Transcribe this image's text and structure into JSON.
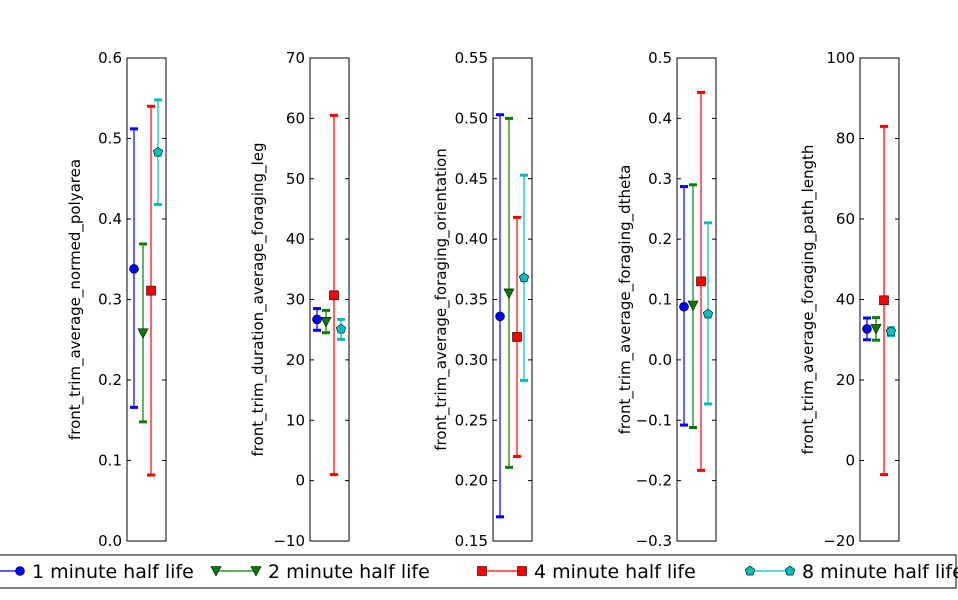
{
  "chart_data": [
    {
      "type": "errorbar",
      "ylabel": "front_trim_average_normed_polyarea",
      "ylim": [
        0.0,
        0.6
      ],
      "yticks": [
        0.0,
        0.1,
        0.2,
        0.3,
        0.4,
        0.5,
        0.6
      ],
      "ytick_labels": [
        "0.0",
        "0.1",
        "0.2",
        "0.3",
        "0.4",
        "0.5",
        "0.6"
      ],
      "series": [
        {
          "name": "1 minute half life",
          "mean": 0.338,
          "low": 0.166,
          "high": 0.512
        },
        {
          "name": "2 minute half life",
          "mean": 0.258,
          "low": 0.148,
          "high": 0.369
        },
        {
          "name": "4 minute half life",
          "mean": 0.311,
          "low": 0.082,
          "high": 0.54
        },
        {
          "name": "8 minute half life",
          "mean": 0.483,
          "low": 0.418,
          "high": 0.548
        }
      ]
    },
    {
      "type": "errorbar",
      "ylabel": "front_trim_duration_average_foraging_leg",
      "ylim": [
        -10,
        70
      ],
      "yticks": [
        -10,
        0,
        10,
        20,
        30,
        40,
        50,
        60,
        70
      ],
      "ytick_labels": [
        "−10",
        "0",
        "10",
        "20",
        "30",
        "40",
        "50",
        "60",
        "70"
      ],
      "series": [
        {
          "name": "1 minute half life",
          "mean": 26.7,
          "low": 24.9,
          "high": 28.5
        },
        {
          "name": "2 minute half life",
          "mean": 26.3,
          "low": 24.5,
          "high": 28.2
        },
        {
          "name": "4 minute half life",
          "mean": 30.7,
          "low": 1.0,
          "high": 60.5
        },
        {
          "name": "8 minute half life",
          "mean": 25.1,
          "low": 23.4,
          "high": 26.7
        }
      ]
    },
    {
      "type": "errorbar",
      "ylabel": "front_trim_average_foraging_orientation",
      "ylim": [
        0.15,
        0.55
      ],
      "yticks": [
        0.15,
        0.2,
        0.25,
        0.3,
        0.35,
        0.4,
        0.45,
        0.5,
        0.55
      ],
      "ytick_labels": [
        "0.15",
        "0.20",
        "0.25",
        "0.30",
        "0.35",
        "0.40",
        "0.45",
        "0.50",
        "0.55"
      ],
      "series": [
        {
          "name": "1 minute half life",
          "mean": 0.336,
          "low": 0.17,
          "high": 0.503
        },
        {
          "name": "2 minute half life",
          "mean": 0.355,
          "low": 0.211,
          "high": 0.5
        },
        {
          "name": "4 minute half life",
          "mean": 0.319,
          "low": 0.22,
          "high": 0.418
        },
        {
          "name": "8 minute half life",
          "mean": 0.368,
          "low": 0.283,
          "high": 0.453
        }
      ]
    },
    {
      "type": "errorbar",
      "ylabel": "front_trim_average_foraging_dtheta",
      "ylim": [
        -0.3,
        0.5
      ],
      "yticks": [
        -0.3,
        -0.2,
        -0.1,
        0.0,
        0.1,
        0.2,
        0.3,
        0.4,
        0.5
      ],
      "ytick_labels": [
        "−0.3",
        "−0.2",
        "−0.1",
        "0.0",
        "0.1",
        "0.2",
        "0.3",
        "0.4",
        "0.5"
      ],
      "series": [
        {
          "name": "1 minute half life",
          "mean": 0.088,
          "low": -0.108,
          "high": 0.287
        },
        {
          "name": "2 minute half life",
          "mean": 0.09,
          "low": -0.112,
          "high": 0.29
        },
        {
          "name": "4 minute half life",
          "mean": 0.13,
          "low": -0.183,
          "high": 0.443
        },
        {
          "name": "8 minute half life",
          "mean": 0.076,
          "low": -0.073,
          "high": 0.227
        }
      ]
    },
    {
      "type": "errorbar",
      "ylabel": "front_trim_average_foraging_path_length",
      "ylim": [
        -20,
        100
      ],
      "yticks": [
        -20,
        0,
        20,
        40,
        60,
        80,
        100
      ],
      "ytick_labels": [
        "−20",
        "0",
        "20",
        "40",
        "60",
        "80",
        "100"
      ],
      "series": [
        {
          "name": "1 minute half life",
          "mean": 32.7,
          "low": 30.0,
          "high": 35.4
        },
        {
          "name": "2 minute half life",
          "mean": 32.7,
          "low": 29.9,
          "high": 35.5
        },
        {
          "name": "4 minute half life",
          "mean": 39.8,
          "low": -3.5,
          "high": 83.0
        },
        {
          "name": "8 minute half life",
          "mean": 32.0,
          "low": 31.0,
          "high": 33.0
        }
      ]
    }
  ],
  "legend": {
    "placement": "bottom",
    "entries": [
      {
        "label": "1 minute half life",
        "color": "#0000ff",
        "marker": "circle"
      },
      {
        "label": "2 minute half life",
        "color": "#008000",
        "marker": "triangle-down"
      },
      {
        "label": "4 minute half life",
        "color": "#ff0000",
        "marker": "square"
      },
      {
        "label": "8 minute half life",
        "color": "#00bfbf",
        "marker": "pentagon"
      }
    ]
  },
  "series_colors": [
    "#0000ff",
    "#008000",
    "#ff0000",
    "#00bfbf"
  ]
}
